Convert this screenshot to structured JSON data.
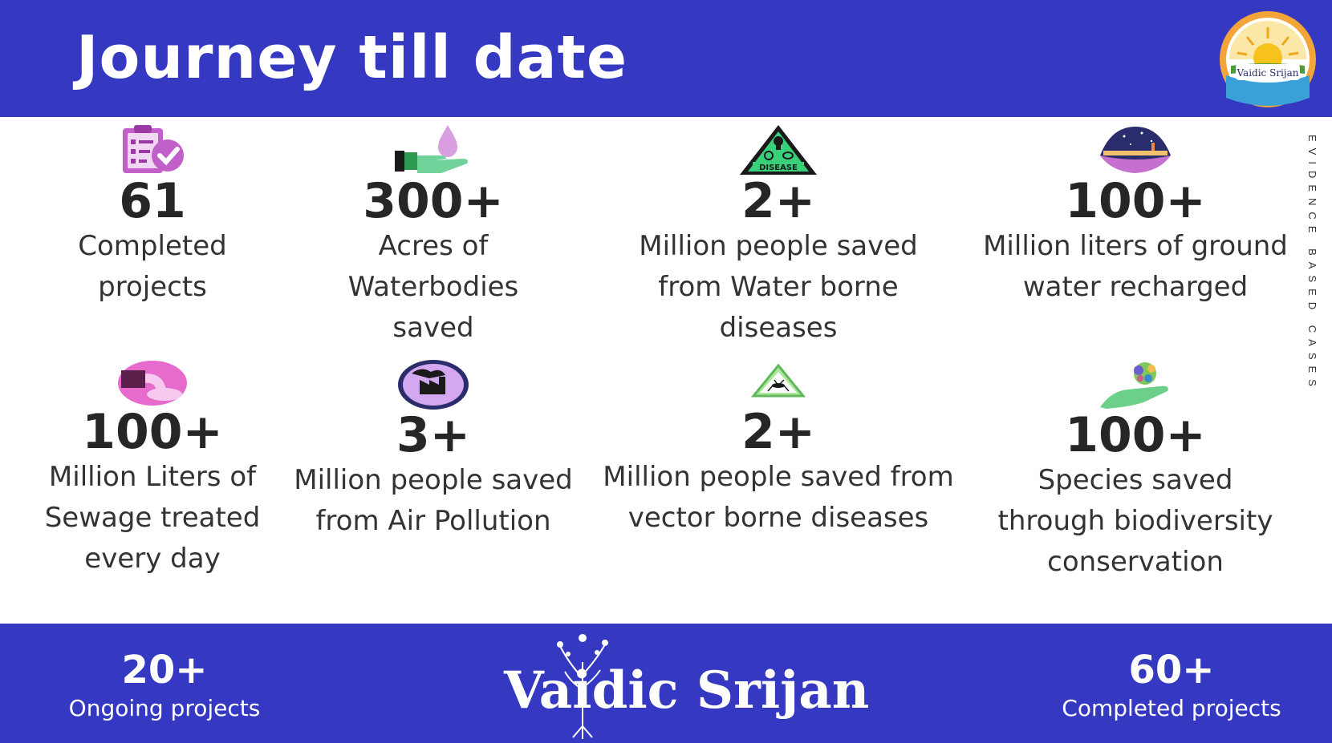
{
  "header": {
    "title": "Journey till date",
    "logo_text": "Vaidic Srijan"
  },
  "side_tag": "EVIDENCE BASED CASES",
  "stats": [
    {
      "icon": "clipboard-check-icon",
      "value": "61",
      "lines": [
        "Completed",
        "projects"
      ]
    },
    {
      "icon": "water-drop-hand-icon",
      "value": "300+",
      "lines": [
        "Acres of",
        "Waterbodies",
        "saved"
      ]
    },
    {
      "icon": "disease-warning-icon",
      "value": "2+",
      "lines": [
        "Million people saved",
        "from Water borne",
        "diseases"
      ]
    },
    {
      "icon": "night-water-scene-icon",
      "value": "100+",
      "lines": [
        "Million liters of ground",
        "water recharged"
      ]
    },
    {
      "icon": "sewage-pipe-icon",
      "value": "100+",
      "lines": [
        "Million Liters of",
        "Sewage treated",
        "every day"
      ]
    },
    {
      "icon": "factory-pollution-icon",
      "value": "3+",
      "lines": [
        "Million people saved",
        "from Air Pollution"
      ]
    },
    {
      "icon": "mosquito-warning-icon",
      "value": "2+",
      "lines": [
        "Million people saved from",
        "vector borne diseases"
      ]
    },
    {
      "icon": "biodiversity-hand-icon",
      "value": "100+",
      "lines": [
        "Species saved",
        "through biodiversity",
        "conservation"
      ]
    }
  ],
  "footer": {
    "ongoing": {
      "value": "20+",
      "label": "Ongoing projects"
    },
    "brand": "Vaidic Srijan",
    "completed": {
      "value": "60+",
      "label": "Completed projects"
    }
  },
  "colors": {
    "header_bg": "#3539c2",
    "footer_bg": "#3539c2",
    "text_dark": "#262626"
  }
}
